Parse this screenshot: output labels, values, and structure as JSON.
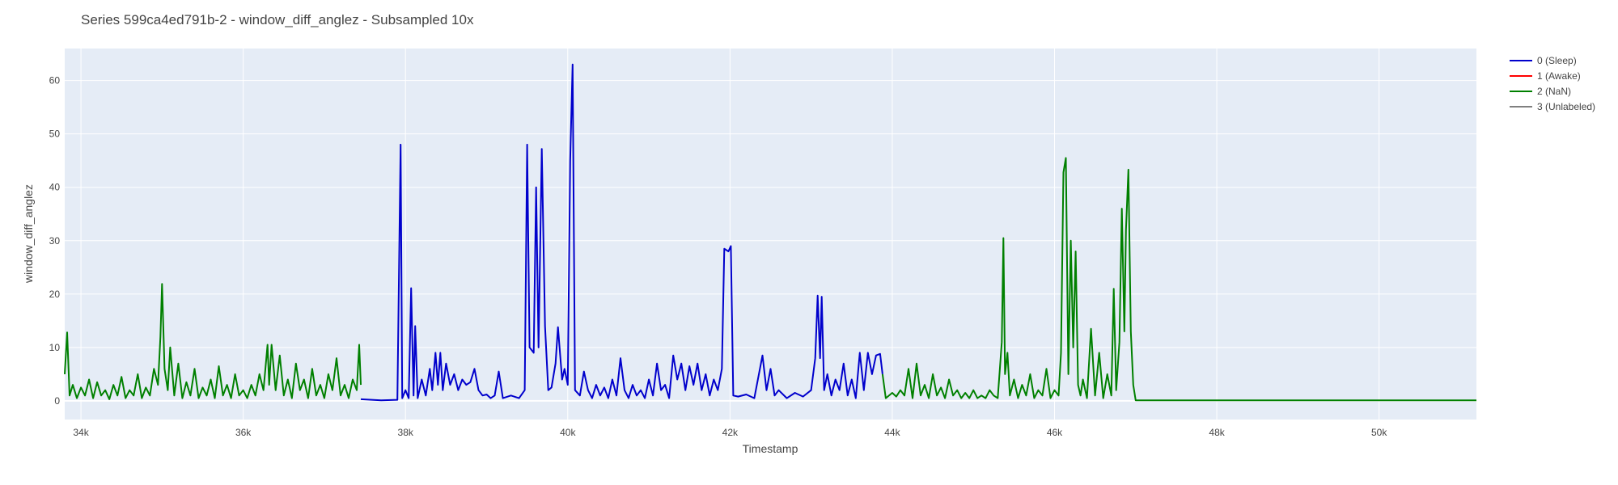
{
  "chart_data": {
    "type": "line",
    "title": "Series 599ca4ed791b-2 - window_diff_anglez - Subsampled 10x",
    "xlabel": "Timestamp",
    "ylabel": "window_diff_anglez",
    "xlim": [
      33800,
      51200
    ],
    "ylim": [
      -3.5,
      66
    ],
    "x_ticks": [
      34000,
      36000,
      38000,
      40000,
      42000,
      44000,
      46000,
      48000,
      50000
    ],
    "x_tick_labels": [
      "34k",
      "36k",
      "38k",
      "40k",
      "42k",
      "44k",
      "46k",
      "48k",
      "50k"
    ],
    "y_ticks": [
      0,
      10,
      20,
      30,
      40,
      50,
      60
    ],
    "y_tick_labels": [
      "0",
      "10",
      "20",
      "30",
      "40",
      "50",
      "60"
    ],
    "grid": true,
    "legend_position": "top-right",
    "legend": [
      {
        "label": "0 (Sleep)",
        "color": "#0000cc"
      },
      {
        "label": "1 (Awake)",
        "color": "#ff0000"
      },
      {
        "label": "2 (NaN)",
        "color": "#008000"
      },
      {
        "label": "3 (Unlabeled)",
        "color": "#808080"
      }
    ],
    "series": [
      {
        "name": "2 (NaN)",
        "color": "#008000",
        "points": [
          [
            33800,
            5
          ],
          [
            33830,
            12.8
          ],
          [
            33860,
            1
          ],
          [
            33900,
            3
          ],
          [
            33950,
            0.5
          ],
          [
            34000,
            2.5
          ],
          [
            34050,
            1
          ],
          [
            34100,
            4
          ],
          [
            34150,
            0.5
          ],
          [
            34200,
            3.5
          ],
          [
            34250,
            1
          ],
          [
            34300,
            2
          ],
          [
            34350,
            0.3
          ],
          [
            34400,
            3
          ],
          [
            34450,
            1
          ],
          [
            34500,
            4.5
          ],
          [
            34550,
            0.5
          ],
          [
            34600,
            2
          ],
          [
            34650,
            1
          ],
          [
            34700,
            5
          ],
          [
            34750,
            0.5
          ],
          [
            34800,
            2.5
          ],
          [
            34850,
            1
          ],
          [
            34900,
            6
          ],
          [
            34950,
            3
          ],
          [
            34980,
            12
          ],
          [
            35000,
            21.9
          ],
          [
            35030,
            6
          ],
          [
            35070,
            2
          ],
          [
            35100,
            10
          ],
          [
            35150,
            1
          ],
          [
            35200,
            7
          ],
          [
            35250,
            0.5
          ],
          [
            35300,
            3.5
          ],
          [
            35350,
            1
          ],
          [
            35400,
            6
          ],
          [
            35450,
            0.5
          ],
          [
            35500,
            2.5
          ],
          [
            35550,
            1
          ],
          [
            35600,
            4
          ],
          [
            35650,
            0.5
          ],
          [
            35700,
            6.5
          ],
          [
            35750,
            1
          ],
          [
            35800,
            3
          ],
          [
            35850,
            0.5
          ],
          [
            35900,
            5
          ],
          [
            35950,
            1
          ],
          [
            36000,
            2
          ],
          [
            36050,
            0.5
          ],
          [
            36100,
            3
          ],
          [
            36150,
            1
          ],
          [
            36200,
            5
          ],
          [
            36250,
            2
          ],
          [
            36300,
            10.5
          ],
          [
            36320,
            3
          ],
          [
            36350,
            10.5
          ],
          [
            36400,
            2
          ],
          [
            36450,
            8.5
          ],
          [
            36500,
            1
          ],
          [
            36550,
            4
          ],
          [
            36600,
            0.5
          ],
          [
            36650,
            7
          ],
          [
            36700,
            2
          ],
          [
            36750,
            4
          ],
          [
            36800,
            0.5
          ],
          [
            36850,
            6
          ],
          [
            36900,
            1
          ],
          [
            36950,
            3
          ],
          [
            37000,
            0.5
          ],
          [
            37050,
            5
          ],
          [
            37100,
            2
          ],
          [
            37150,
            8
          ],
          [
            37200,
            1
          ],
          [
            37250,
            3
          ],
          [
            37300,
            0.5
          ],
          [
            37350,
            4
          ],
          [
            37400,
            2
          ],
          [
            37430,
            10.5
          ],
          [
            37450,
            3
          ]
        ]
      },
      {
        "name": "0 (Sleep)",
        "color": "#0000cc",
        "points": [
          [
            37450,
            0.3
          ],
          [
            37700,
            0.1
          ],
          [
            37900,
            0.2
          ],
          [
            37940,
            48
          ],
          [
            37960,
            0.5
          ],
          [
            38000,
            2
          ],
          [
            38040,
            0.5
          ],
          [
            38070,
            21.1
          ],
          [
            38100,
            1
          ],
          [
            38120,
            14
          ],
          [
            38150,
            0.5
          ],
          [
            38200,
            4
          ],
          [
            38250,
            1
          ],
          [
            38300,
            6
          ],
          [
            38330,
            2
          ],
          [
            38370,
            9
          ],
          [
            38400,
            3
          ],
          [
            38430,
            9
          ],
          [
            38460,
            2
          ],
          [
            38500,
            7
          ],
          [
            38550,
            3
          ],
          [
            38600,
            5
          ],
          [
            38650,
            2
          ],
          [
            38700,
            4
          ],
          [
            38750,
            3
          ],
          [
            38800,
            3.5
          ],
          [
            38850,
            6
          ],
          [
            38900,
            2
          ],
          [
            38950,
            1
          ],
          [
            39000,
            1.2
          ],
          [
            39050,
            0.5
          ],
          [
            39100,
            1
          ],
          [
            39150,
            5.5
          ],
          [
            39200,
            0.5
          ],
          [
            39300,
            1
          ],
          [
            39400,
            0.5
          ],
          [
            39470,
            2
          ],
          [
            39500,
            48
          ],
          [
            39530,
            10
          ],
          [
            39580,
            9
          ],
          [
            39610,
            40
          ],
          [
            39640,
            10
          ],
          [
            39680,
            47.2
          ],
          [
            39720,
            14
          ],
          [
            39760,
            2
          ],
          [
            39800,
            2.5
          ],
          [
            39850,
            7
          ],
          [
            39880,
            13.8
          ],
          [
            39930,
            4
          ],
          [
            39960,
            6
          ],
          [
            40000,
            3
          ],
          [
            40030,
            45
          ],
          [
            40060,
            63
          ],
          [
            40090,
            2
          ],
          [
            40150,
            1
          ],
          [
            40200,
            5.5
          ],
          [
            40250,
            2
          ],
          [
            40300,
            0.5
          ],
          [
            40350,
            3
          ],
          [
            40400,
            1
          ],
          [
            40450,
            2.5
          ],
          [
            40500,
            0.5
          ],
          [
            40550,
            4
          ],
          [
            40600,
            1
          ],
          [
            40650,
            8
          ],
          [
            40700,
            2
          ],
          [
            40750,
            0.5
          ],
          [
            40800,
            3
          ],
          [
            40850,
            1
          ],
          [
            40900,
            2
          ],
          [
            40950,
            0.5
          ],
          [
            41000,
            4
          ],
          [
            41050,
            1
          ],
          [
            41100,
            7
          ],
          [
            41150,
            2
          ],
          [
            41200,
            3
          ],
          [
            41250,
            0.5
          ],
          [
            41300,
            8.5
          ],
          [
            41350,
            4
          ],
          [
            41400,
            7
          ],
          [
            41450,
            2
          ],
          [
            41500,
            6.5
          ],
          [
            41550,
            3
          ],
          [
            41600,
            7
          ],
          [
            41650,
            2
          ],
          [
            41700,
            5
          ],
          [
            41750,
            1
          ],
          [
            41800,
            4
          ],
          [
            41850,
            2
          ],
          [
            41900,
            6
          ],
          [
            41930,
            28.5
          ],
          [
            41980,
            28
          ],
          [
            42010,
            29
          ],
          [
            42040,
            1
          ],
          [
            42100,
            0.8
          ],
          [
            42200,
            1.2
          ],
          [
            42300,
            0.5
          ],
          [
            42400,
            8.5
          ],
          [
            42450,
            2
          ],
          [
            42500,
            6
          ],
          [
            42550,
            1
          ],
          [
            42600,
            2
          ],
          [
            42700,
            0.5
          ],
          [
            42800,
            1.5
          ],
          [
            42900,
            0.8
          ],
          [
            43000,
            2
          ],
          [
            43050,
            8
          ],
          [
            43080,
            19.7
          ],
          [
            43110,
            8
          ],
          [
            43130,
            19.5
          ],
          [
            43160,
            2
          ],
          [
            43200,
            5
          ],
          [
            43250,
            1
          ],
          [
            43300,
            4
          ],
          [
            43350,
            2
          ],
          [
            43400,
            7
          ],
          [
            43450,
            1
          ],
          [
            43500,
            4
          ],
          [
            43550,
            0.5
          ],
          [
            43600,
            9
          ],
          [
            43650,
            2
          ],
          [
            43700,
            9
          ],
          [
            43750,
            5
          ],
          [
            43800,
            8.5
          ],
          [
            43850,
            8.8
          ],
          [
            43880,
            5
          ]
        ]
      },
      {
        "name": "2 (NaN)",
        "color": "#008000",
        "points": [
          [
            43880,
            5
          ],
          [
            43920,
            0.5
          ],
          [
            44000,
            1.5
          ],
          [
            44050,
            0.8
          ],
          [
            44100,
            2
          ],
          [
            44150,
            1
          ],
          [
            44200,
            6
          ],
          [
            44250,
            0.5
          ],
          [
            44300,
            7
          ],
          [
            44350,
            1
          ],
          [
            44400,
            3
          ],
          [
            44450,
            0.5
          ],
          [
            44500,
            5
          ],
          [
            44550,
            1
          ],
          [
            44600,
            2.5
          ],
          [
            44650,
            0.5
          ],
          [
            44700,
            4
          ],
          [
            44750,
            1
          ],
          [
            44800,
            2
          ],
          [
            44850,
            0.5
          ],
          [
            44900,
            1.5
          ],
          [
            44950,
            0.5
          ],
          [
            45000,
            2
          ],
          [
            45050,
            0.5
          ],
          [
            45100,
            1
          ],
          [
            45150,
            0.5
          ],
          [
            45200,
            2
          ],
          [
            45250,
            1
          ],
          [
            45300,
            0.5
          ],
          [
            45350,
            11
          ],
          [
            45370,
            30.5
          ],
          [
            45390,
            5
          ],
          [
            45420,
            9
          ],
          [
            45450,
            1
          ],
          [
            45500,
            4
          ],
          [
            45550,
            0.5
          ],
          [
            45600,
            3
          ],
          [
            45650,
            1
          ],
          [
            45700,
            5
          ],
          [
            45750,
            0.5
          ],
          [
            45800,
            2
          ],
          [
            45850,
            1
          ],
          [
            45900,
            6
          ],
          [
            45950,
            0.5
          ],
          [
            46000,
            2
          ],
          [
            46050,
            1
          ],
          [
            46080,
            9
          ],
          [
            46110,
            42.8
          ],
          [
            46140,
            45.5
          ],
          [
            46170,
            5
          ],
          [
            46200,
            30
          ],
          [
            46230,
            10
          ],
          [
            46260,
            28
          ],
          [
            46290,
            3
          ],
          [
            46320,
            1
          ],
          [
            46350,
            4
          ],
          [
            46400,
            0.5
          ],
          [
            46450,
            13.5
          ],
          [
            46500,
            1
          ],
          [
            46550,
            9
          ],
          [
            46600,
            0.5
          ],
          [
            46650,
            5
          ],
          [
            46700,
            1
          ],
          [
            46730,
            21
          ],
          [
            46760,
            2
          ],
          [
            46800,
            11
          ],
          [
            46830,
            36
          ],
          [
            46860,
            13
          ],
          [
            46880,
            32
          ],
          [
            46910,
            43.3
          ],
          [
            46940,
            13
          ],
          [
            46970,
            3
          ],
          [
            47000,
            0.1
          ],
          [
            48000,
            0.1
          ],
          [
            49000,
            0.1
          ],
          [
            50000,
            0.1
          ],
          [
            51200,
            0.1
          ]
        ]
      }
    ]
  }
}
